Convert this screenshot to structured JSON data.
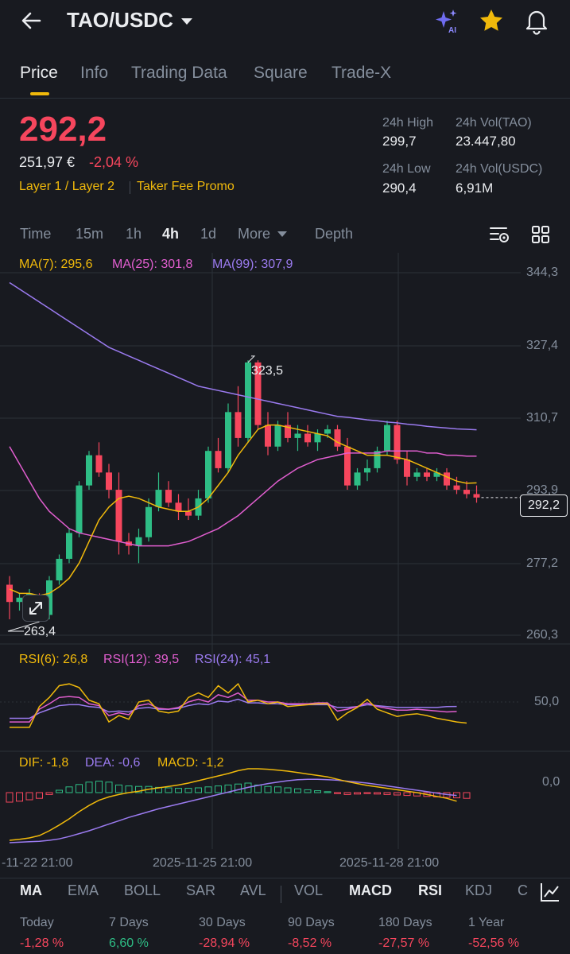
{
  "header": {
    "pair": "TAO/USDC"
  },
  "tabs": [
    "Price",
    "Info",
    "Trading Data",
    "Square",
    "Trade-X"
  ],
  "price": {
    "last": "292,2",
    "fiat": "251,97 €",
    "change": "-2,04 %",
    "tags": [
      "Layer 1 / Layer 2",
      "Taker Fee Promo"
    ]
  },
  "stats": {
    "high_label": "24h High",
    "high": "299,7",
    "vol_tao_label": "24h Vol(TAO)",
    "vol_tao": "23.447,80",
    "low_label": "24h Low",
    "low": "290,4",
    "vol_usdc_label": "24h Vol(USDC)",
    "vol_usdc": "6,91M"
  },
  "timeframes": [
    "Time",
    "15m",
    "1h",
    "4h",
    "1d",
    "More",
    "Depth"
  ],
  "active_timeframe": "4h",
  "indicators": {
    "ma7": "MA(7): 295,6",
    "ma25": "MA(25): 301,8",
    "ma99": "MA(99): 307,9",
    "rsi6": "RSI(6): 26,8",
    "rsi12": "RSI(12): 39,5",
    "rsi24": "RSI(24): 45,1",
    "dif": "DIF: -1,8",
    "dea": "DEA: -0,6",
    "macd": "MACD: -1,2"
  },
  "axes": {
    "price": [
      "344,3",
      "327,4",
      "310,7",
      "293,9",
      "277,2",
      "260,3"
    ],
    "rsi": "50,0",
    "macd": "0,0",
    "time": [
      "-11-22 21:00",
      "2025-11-25 21:00",
      "2025-11-28 21:00"
    ]
  },
  "annotations": {
    "high_marker": "323,5",
    "low_marker": "263,4",
    "current_price": "292,2"
  },
  "bottom_tabs": [
    "MA",
    "EMA",
    "BOLL",
    "SAR",
    "AVL",
    "VOL",
    "MACD",
    "RSI",
    "KDJ",
    "C"
  ],
  "performance": [
    {
      "label": "Today",
      "value": "-1,28 %"
    },
    {
      "label": "7 Days",
      "value": "6,60 %"
    },
    {
      "label": "30 Days",
      "value": "-28,94 %"
    },
    {
      "label": "90 Days",
      "value": "-8,52 %"
    },
    {
      "label": "180 Days",
      "value": "-27,57 %"
    },
    {
      "label": "1 Year",
      "value": "-52,56 %"
    }
  ],
  "colors": {
    "up": "#2ebd85",
    "down": "#f6465d",
    "accent": "#f0b90b",
    "ma7": "#f0b90b",
    "ma25": "#e15ecf",
    "ma99": "#9b7bf0"
  },
  "chart_data": {
    "type": "candlestick",
    "candles": [
      {
        "o": 272,
        "h": 274,
        "l": 264,
        "c": 268
      },
      {
        "o": 268,
        "h": 270,
        "l": 266,
        "c": 269
      },
      {
        "o": 269,
        "h": 271,
        "l": 267,
        "c": 270
      },
      {
        "o": 269,
        "h": 270,
        "l": 263.4,
        "c": 265
      },
      {
        "o": 265,
        "h": 274,
        "l": 264,
        "c": 273
      },
      {
        "o": 273,
        "h": 279,
        "l": 272,
        "c": 278
      },
      {
        "o": 278,
        "h": 285,
        "l": 277,
        "c": 284
      },
      {
        "o": 284,
        "h": 296,
        "l": 283,
        "c": 295
      },
      {
        "o": 295,
        "h": 303,
        "l": 294,
        "c": 302
      },
      {
        "o": 302,
        "h": 305,
        "l": 297,
        "c": 298
      },
      {
        "o": 298,
        "h": 300,
        "l": 292,
        "c": 294
      },
      {
        "o": 294,
        "h": 298,
        "l": 279,
        "c": 282
      },
      {
        "o": 282,
        "h": 284,
        "l": 279,
        "c": 281
      },
      {
        "o": 281,
        "h": 285,
        "l": 277,
        "c": 283
      },
      {
        "o": 283,
        "h": 292,
        "l": 282,
        "c": 290
      },
      {
        "o": 290,
        "h": 298,
        "l": 289,
        "c": 294
      },
      {
        "o": 294,
        "h": 296,
        "l": 290,
        "c": 291
      },
      {
        "o": 291,
        "h": 293,
        "l": 287,
        "c": 289
      },
      {
        "o": 289,
        "h": 292,
        "l": 287,
        "c": 288
      },
      {
        "o": 288,
        "h": 294,
        "l": 287,
        "c": 292
      },
      {
        "o": 292,
        "h": 304,
        "l": 291,
        "c": 303
      },
      {
        "o": 303,
        "h": 306,
        "l": 298,
        "c": 299
      },
      {
        "o": 299,
        "h": 314,
        "l": 298,
        "c": 312
      },
      {
        "o": 312,
        "h": 318,
        "l": 304,
        "c": 306
      },
      {
        "o": 306,
        "h": 324,
        "l": 305,
        "c": 323.5
      },
      {
        "o": 323.5,
        "h": 324,
        "l": 308,
        "c": 309
      },
      {
        "o": 309,
        "h": 312,
        "l": 302,
        "c": 304
      },
      {
        "o": 304,
        "h": 310,
        "l": 303,
        "c": 309
      },
      {
        "o": 309,
        "h": 312,
        "l": 305,
        "c": 306
      },
      {
        "o": 306,
        "h": 309,
        "l": 303,
        "c": 307
      },
      {
        "o": 307,
        "h": 309,
        "l": 304,
        "c": 305
      },
      {
        "o": 305,
        "h": 308,
        "l": 303,
        "c": 307
      },
      {
        "o": 307,
        "h": 309,
        "l": 306,
        "c": 308
      },
      {
        "o": 308,
        "h": 309,
        "l": 303,
        "c": 304
      },
      {
        "o": 304,
        "h": 306,
        "l": 294,
        "c": 295
      },
      {
        "o": 295,
        "h": 299,
        "l": 294,
        "c": 298
      },
      {
        "o": 298,
        "h": 301,
        "l": 296,
        "c": 299
      },
      {
        "o": 299,
        "h": 304,
        "l": 298,
        "c": 303
      },
      {
        "o": 303,
        "h": 310,
        "l": 302,
        "c": 309
      },
      {
        "o": 309,
        "h": 310,
        "l": 300,
        "c": 301
      },
      {
        "o": 301,
        "h": 303,
        "l": 295,
        "c": 297
      },
      {
        "o": 297,
        "h": 299,
        "l": 296,
        "c": 298
      },
      {
        "o": 298,
        "h": 299,
        "l": 296,
        "c": 297
      },
      {
        "o": 297,
        "h": 299,
        "l": 296,
        "c": 298
      },
      {
        "o": 298,
        "h": 299,
        "l": 294,
        "c": 295
      },
      {
        "o": 295,
        "h": 297,
        "l": 293,
        "c": 294
      },
      {
        "o": 294,
        "h": 296,
        "l": 292,
        "c": 293
      },
      {
        "o": 293,
        "h": 295,
        "l": 291,
        "c": 292.2
      }
    ],
    "ma7": [
      271,
      270,
      270,
      269.5,
      270,
      271.5,
      273.5,
      277,
      282,
      287,
      290,
      292,
      292.5,
      292,
      291,
      290,
      289.5,
      289,
      289,
      290,
      292,
      295,
      298,
      302,
      305,
      308,
      309,
      309,
      308.5,
      308,
      307.5,
      307,
      306.5,
      305,
      304,
      303,
      302,
      302,
      302,
      301.5,
      301,
      300,
      299,
      298,
      297,
      296,
      295.5,
      295.6
    ],
    "ma25": [
      304,
      300,
      296,
      292,
      289,
      287,
      285,
      284,
      283.5,
      283,
      282.5,
      282,
      281.5,
      281,
      281,
      281,
      281,
      281.5,
      282,
      283,
      284,
      285,
      286.5,
      288,
      290,
      292,
      294,
      296,
      297.5,
      299,
      300,
      301,
      301.5,
      302,
      302.5,
      302.5,
      302.5,
      302.5,
      303,
      303,
      303,
      303,
      302.5,
      302.5,
      302,
      302,
      301.8,
      301.8
    ],
    "ma99": [
      342,
      340.5,
      339,
      337.5,
      336,
      334.5,
      333,
      331.5,
      330,
      328.5,
      327,
      326,
      325,
      324,
      323,
      322,
      321,
      320,
      319,
      318,
      317.5,
      317,
      316.5,
      316,
      315.5,
      315,
      314.5,
      314,
      313.5,
      313,
      312.5,
      312,
      311.5,
      311,
      310.8,
      310.5,
      310.2,
      310,
      309.7,
      309.5,
      309.2,
      309,
      308.7,
      308.5,
      308.3,
      308.1,
      308,
      307.9
    ],
    "rsi6": [
      22,
      22,
      22,
      45,
      55,
      68,
      70,
      66,
      52,
      48,
      28,
      35,
      31,
      50,
      52,
      40,
      38,
      40,
      55,
      60,
      55,
      68,
      60,
      70,
      50,
      52,
      48,
      50,
      45,
      46,
      47,
      48,
      48,
      30,
      38,
      44,
      53,
      42,
      38,
      34,
      36,
      37,
      35,
      32,
      30,
      28,
      26.8
    ],
    "rsi12": [
      28,
      28,
      28,
      42,
      48,
      55,
      56,
      55,
      48,
      46,
      35,
      38,
      36,
      46,
      48,
      43,
      42,
      44,
      50,
      53,
      50,
      58,
      55,
      60,
      52,
      52,
      50,
      50,
      48,
      48,
      48,
      49,
      49,
      40,
      42,
      45,
      49,
      45,
      43,
      41,
      41,
      42,
      41,
      40,
      39,
      39.5
    ],
    "rsi24": [
      32,
      32,
      32,
      38,
      42,
      46,
      47,
      47,
      45,
      44,
      39,
      40,
      39,
      43,
      44,
      42,
      42,
      43,
      46,
      48,
      47,
      51,
      50,
      53,
      49,
      49,
      48,
      48,
      47,
      47,
      47,
      47,
      47,
      44,
      44,
      45,
      47,
      46,
      45,
      44,
      44,
      44,
      44,
      44,
      45,
      45.1
    ],
    "macd_hist": [
      -2,
      -1.8,
      -1.5,
      -1.2,
      -0.4,
      0.5,
      1.2,
      1.7,
      2.2,
      2.4,
      2.2,
      1.6,
      1.4,
      1.3,
      1.3,
      1.1,
      1.0,
      0.9,
      0.9,
      1.0,
      1.2,
      1.4,
      1.6,
      1.8,
      2.0,
      1.6,
      1.3,
      1.2,
      1.0,
      0.8,
      0.6,
      0.4,
      0.2,
      -0.2,
      -0.4,
      -0.3,
      -0.2,
      -0.3,
      -0.4,
      -0.5,
      -0.6,
      -0.7,
      -0.8,
      -0.9,
      -1.0,
      -1.1,
      -1.2
    ],
    "dif": [
      -10,
      -9.8,
      -9.5,
      -9,
      -8,
      -6.8,
      -5.5,
      -4,
      -2.7,
      -1.6,
      -0.9,
      -0.4,
      0,
      0.3,
      0.7,
      1.0,
      1.3,
      1.6,
      2.0,
      2.5,
      3,
      3.5,
      4,
      4.6,
      5,
      5,
      4.9,
      4.7,
      4.5,
      4.2,
      3.9,
      3.6,
      3.3,
      2.8,
      2.3,
      1.9,
      1.5,
      1.2,
      0.9,
      0.6,
      0.3,
      0,
      -0.4,
      -0.8,
      -1.2,
      -1.8
    ],
    "dea": [
      -10.5,
      -10.4,
      -10.3,
      -10.2,
      -10,
      -9.7,
      -9.2,
      -8.6,
      -8,
      -7.3,
      -6.6,
      -5.9,
      -5.2,
      -4.6,
      -4,
      -3.4,
      -2.9,
      -2.4,
      -1.9,
      -1.4,
      -0.9,
      -0.4,
      0.1,
      0.6,
      1.1,
      1.5,
      1.9,
      2.2,
      2.5,
      2.7,
      2.8,
      2.8,
      2.7,
      2.6,
      2.4,
      2.2,
      2.0,
      1.7,
      1.4,
      1.1,
      0.8,
      0.5,
      0.2,
      -0.1,
      -0.4,
      -0.6
    ]
  }
}
